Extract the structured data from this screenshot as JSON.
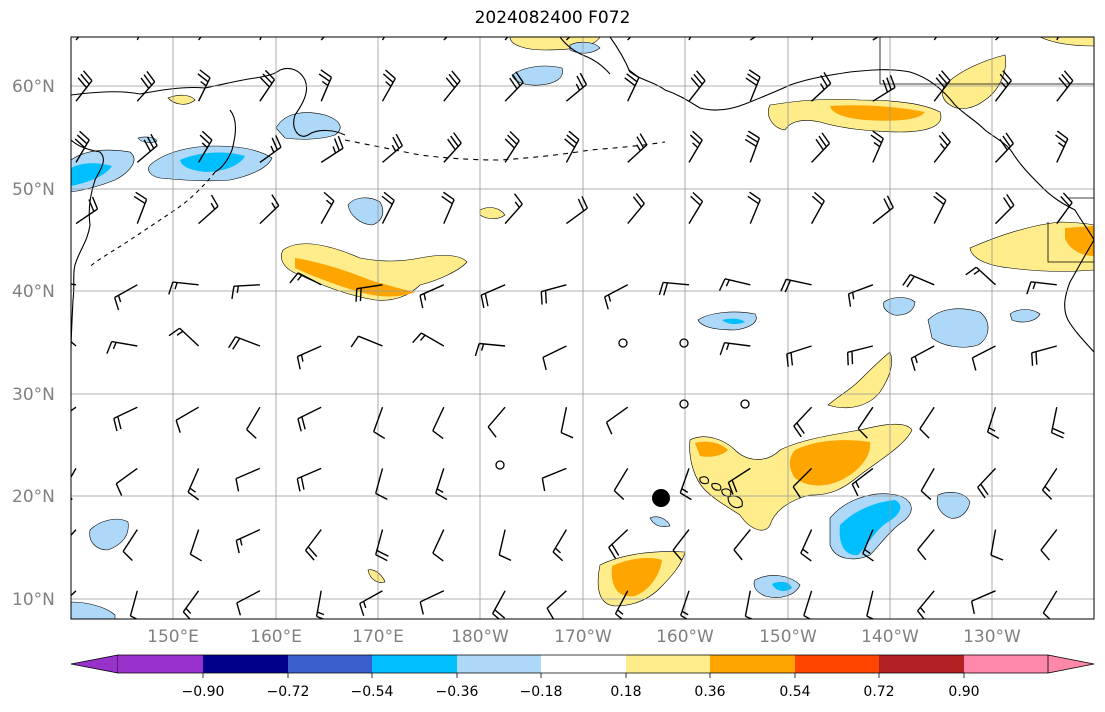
{
  "title": "2024082400 F072",
  "latitude_labels": [
    "10°N",
    "20°N",
    "30°N",
    "40°N",
    "50°N",
    "60°N"
  ],
  "longitude_labels": [
    "150°E",
    "160°E",
    "170°E",
    "180°W",
    "170°W",
    "160°W",
    "150°W",
    "140°W",
    "130°W"
  ],
  "colorbar": {
    "ticks": [
      "−0.90",
      "−0.72",
      "−0.54",
      "−0.36",
      "−0.18",
      "0.18",
      "0.36",
      "0.54",
      "0.72",
      "0.90"
    ],
    "colors": [
      "#9932cc",
      "#00008b",
      "#3a5fcd",
      "#00bfff",
      "#add8f7",
      "#ffffff",
      "#ffec8b",
      "#ffa500",
      "#ff4500",
      "#b22222",
      "#ff88aa"
    ]
  },
  "marker": {
    "type": "dot",
    "lat": 19.8,
    "lon": -162.2
  }
}
